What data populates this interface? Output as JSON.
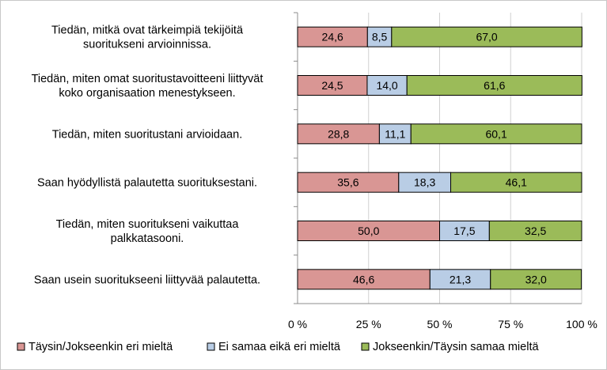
{
  "chart_data": {
    "type": "bar",
    "orientation": "horizontal",
    "stacked": true,
    "percent": true,
    "categories": [
      [
        "Tiedän, mitkä ovat tärkeimpiä tekijöitä",
        "suoritukseni arvioinnissa."
      ],
      [
        "Tiedän, miten omat suoritustavoitteeni liittyvät",
        "koko organisaation menestykseen."
      ],
      [
        "Tiedän, miten suoritustani arvioidaan."
      ],
      [
        "Saan hyödyllistä palautetta suorituksestani."
      ],
      [
        "Tiedän, miten suoritukseni vaikuttaa",
        "palkkatasooni."
      ],
      [
        "Saan usein suoritukseeni liittyvää palautetta."
      ]
    ],
    "series": [
      {
        "name": "Täysin/Jokseenkin eri mieltä",
        "color": "#d99694",
        "values": [
          24.6,
          24.5,
          28.8,
          35.6,
          50.0,
          46.6
        ],
        "labels": [
          "24,6",
          "24,5",
          "28,8",
          "35,6",
          "50,0",
          "46,6"
        ]
      },
      {
        "name": "Ei samaa eikä eri mieltä",
        "color": "#b9cde5",
        "values": [
          8.5,
          14.0,
          11.1,
          18.3,
          17.5,
          21.3
        ],
        "labels": [
          "8,5",
          "14,0",
          "11,1",
          "18,3",
          "17,5",
          "21,3"
        ]
      },
      {
        "name": "Jokseenkin/Täysin samaa mieltä",
        "color": "#9bbb59",
        "values": [
          67.0,
          61.6,
          60.1,
          46.1,
          32.5,
          32.0
        ],
        "labels": [
          "67,0",
          "61,6",
          "60,1",
          "46,1",
          "32,5",
          "32,0"
        ]
      }
    ],
    "xticks": [
      "0 %",
      "25 %",
      "50 %",
      "75 %",
      "100 %"
    ],
    "xlim": [
      0,
      100
    ],
    "grid": true,
    "legend_position": "bottom"
  }
}
